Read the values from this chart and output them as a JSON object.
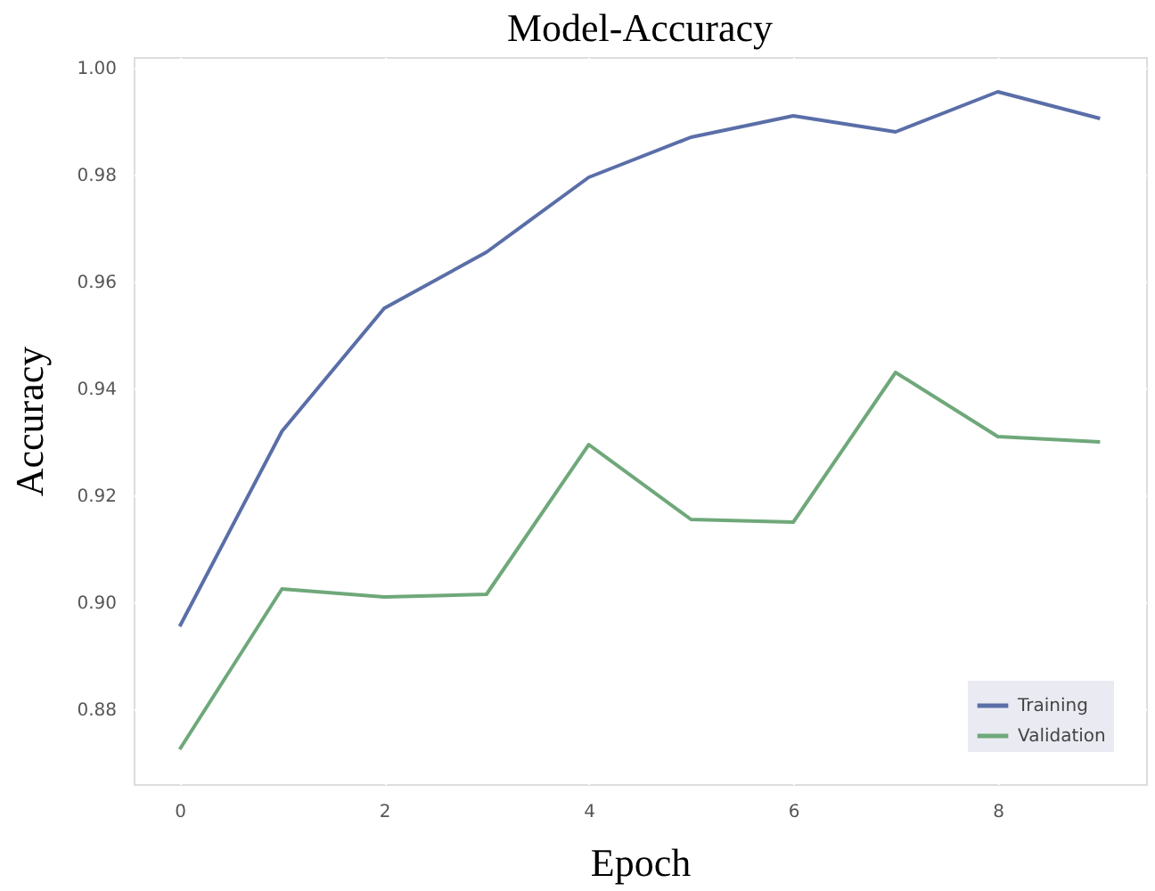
{
  "chart_data": {
    "type": "line",
    "title": "Model-Accuracy",
    "xlabel": "Epoch",
    "ylabel": "Accuracy",
    "x": [
      0,
      1,
      2,
      3,
      4,
      5,
      6,
      7,
      8,
      9
    ],
    "series": [
      {
        "name": "Training",
        "color": "#5a6ea8",
        "values": [
          0.8955,
          0.932,
          0.955,
          0.9655,
          0.9795,
          0.987,
          0.991,
          0.988,
          0.9955,
          0.9905
        ]
      },
      {
        "name": "Validation",
        "color": "#6fa87a",
        "values": [
          0.8725,
          0.9025,
          0.901,
          0.9015,
          0.9295,
          0.9155,
          0.915,
          0.943,
          0.931,
          0.93
        ]
      }
    ],
    "xlim": [
      -0.45,
      9.45
    ],
    "xticks": [
      0,
      2,
      4,
      6,
      8
    ],
    "ylim": [
      0.866,
      1.002
    ],
    "yticks": [
      {
        "value": 0.88,
        "label": "0.88"
      },
      {
        "value": 0.9,
        "label": "0.90"
      },
      {
        "value": 0.92,
        "label": "0.92"
      },
      {
        "value": 0.94,
        "label": "0.94"
      },
      {
        "value": 0.96,
        "label": "0.96"
      },
      {
        "value": 0.98,
        "label": "0.98"
      },
      {
        "value": 1.0,
        "label": "1.00"
      }
    ],
    "grid": true,
    "legend": "bottom right",
    "marker": "none",
    "line_style": "solid"
  }
}
